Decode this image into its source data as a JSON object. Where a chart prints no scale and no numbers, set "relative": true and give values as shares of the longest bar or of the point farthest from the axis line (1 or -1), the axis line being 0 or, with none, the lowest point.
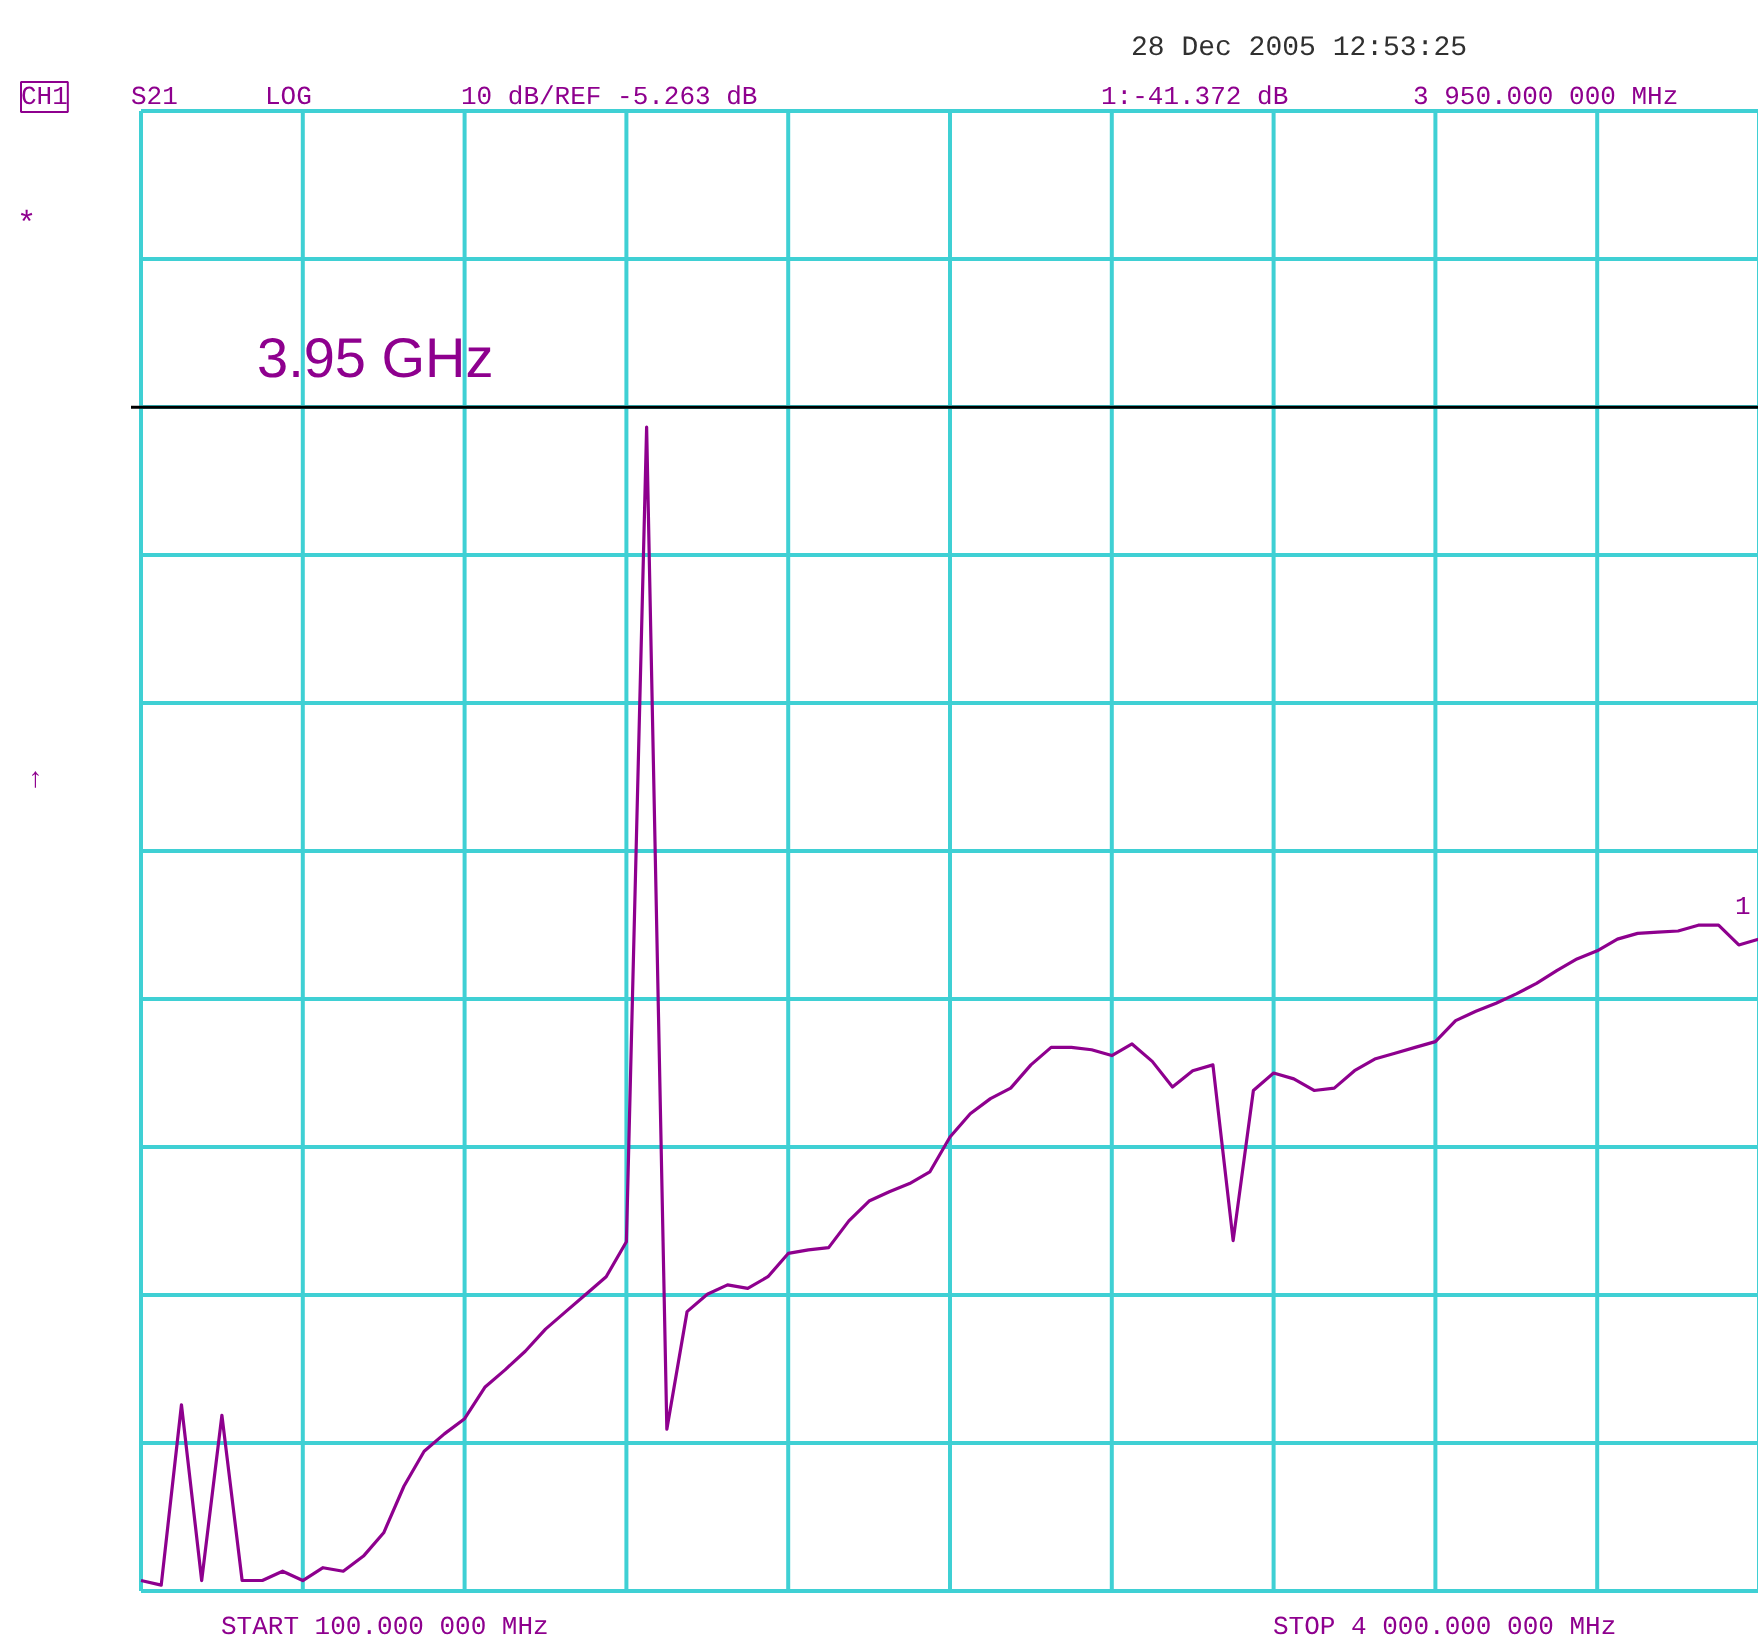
{
  "chart_data": {
    "type": "line",
    "relative": true,
    "grid": true,
    "categories": [
      null,
      null,
      null,
      null,
      null,
      null,
      null,
      null,
      null,
      null,
      null,
      null,
      null,
      null,
      null,
      null,
      null,
      null,
      null,
      null,
      null,
      null,
      null,
      null,
      null,
      null,
      null,
      null,
      null,
      null,
      null,
      null,
      null,
      null,
      null,
      null,
      null,
      null,
      null,
      null,
      null,
      null,
      null,
      null,
      null,
      null,
      null,
      null,
      null,
      null,
      null,
      null,
      null,
      null,
      null,
      null,
      null,
      null,
      null,
      null,
      null,
      null,
      null,
      null,
      null,
      null,
      null,
      null,
      null,
      null,
      null,
      null,
      null,
      null,
      null,
      null,
      null,
      null,
      null,
      null,
      null
    ],
    "series": [
      {
        "color": "#8e008e",
        "values": [
          0.009,
          0.005,
          0.16,
          0.009,
          0.151,
          0.009,
          0.009,
          0.017,
          0.009,
          0.02,
          0.017,
          0.03,
          0.05,
          0.09,
          0.12,
          0.135,
          0.148,
          0.175,
          0.19,
          0.206,
          0.225,
          0.24,
          0.255,
          0.27,
          0.3,
          1.0,
          0.139,
          0.24,
          0.255,
          0.263,
          0.26,
          0.27,
          0.29,
          0.293,
          0.295,
          0.318,
          0.335,
          0.343,
          0.35,
          0.36,
          0.39,
          0.41,
          0.423,
          0.432,
          0.452,
          0.467,
          0.467,
          0.465,
          0.46,
          0.47,
          0.455,
          0.433,
          0.447,
          0.452,
          0.301,
          0.43,
          0.445,
          0.44,
          0.43,
          0.432,
          0.447,
          0.457,
          0.462,
          0.467,
          0.472,
          0.49,
          0.498,
          0.505,
          0.513,
          0.522,
          0.533,
          0.543,
          0.55,
          0.56,
          0.565,
          0.566,
          0.567,
          0.572,
          0.572,
          0.555,
          0.56
        ]
      }
    ],
    "ref_lines": [
      {
        "axis": "y",
        "value": 1.017,
        "label": "3.95 GHz",
        "color": "#000000"
      }
    ],
    "annotations": [
      "28 Dec 2005  12:53:25",
      "CH1",
      "S21",
      "LOG",
      "10 dB/REF -5.263 dB",
      "1:-41.372 dB",
      "3 950.000 000 MHz",
      "*",
      "↑",
      "START 100.000 000 MHz",
      "STOP 4 000.000 000 MHz",
      "1"
    ]
  }
}
